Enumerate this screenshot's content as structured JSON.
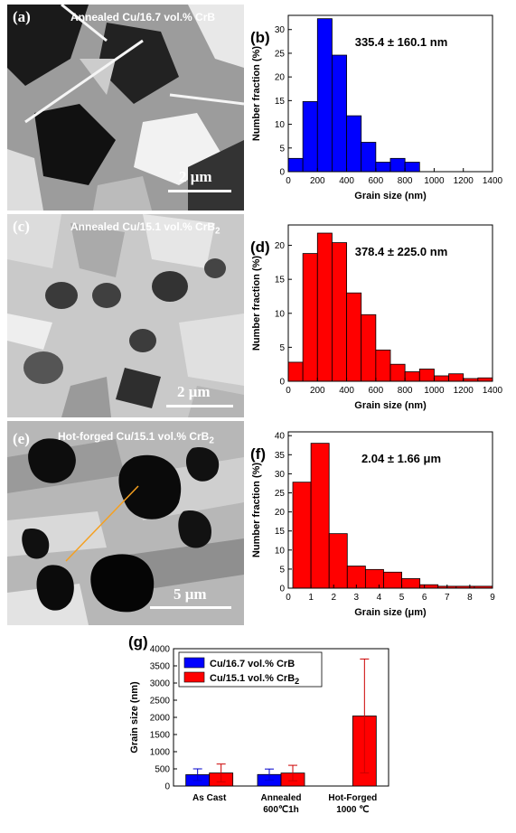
{
  "micrographs": [
    {
      "letter": "(a)",
      "title": "Annealed Cu/16.7 vol.% CrB",
      "title_sub": "",
      "scale": "2 μm"
    },
    {
      "letter": "(c)",
      "title": "Annealed Cu/15.1 vol.% CrB",
      "title_sub": "2",
      "scale": "2 μm"
    },
    {
      "letter": "(e)",
      "title": "Hot-forged Cu/15.1 vol.% CrB",
      "title_sub": "2",
      "scale": "5 μm"
    }
  ],
  "colors": {
    "blue": "#0000ff",
    "red": "#ff0000"
  },
  "chart_data": [
    {
      "id": "b",
      "letter": "(b)",
      "type": "bar",
      "annotation": "335.4 ± 160.1 nm",
      "xlabel": "Grain size (nm)",
      "ylabel": "Number fraction (%)",
      "xlim": [
        0,
        1400
      ],
      "ylim": [
        0,
        33
      ],
      "xticks": [
        0,
        200,
        400,
        600,
        800,
        1000,
        1200,
        1400
      ],
      "yticks": [
        0,
        5,
        10,
        15,
        20,
        25,
        30
      ],
      "bin_width": 100,
      "bin_starts": [
        0,
        100,
        200,
        300,
        400,
        500,
        600,
        700,
        800
      ],
      "values": [
        2.8,
        14.8,
        32.3,
        24.6,
        11.8,
        6.2,
        2.0,
        2.8,
        2.0
      ],
      "color": "#0000ff"
    },
    {
      "id": "d",
      "letter": "(d)",
      "type": "bar",
      "annotation": "378.4 ± 225.0 nm",
      "xlabel": "Grain size (nm)",
      "ylabel": "Number fraction (%)",
      "xlim": [
        0,
        1400
      ],
      "ylim": [
        0,
        23
      ],
      "xticks": [
        0,
        200,
        400,
        600,
        800,
        1000,
        1200,
        1400
      ],
      "yticks": [
        0,
        5,
        10,
        15,
        20
      ],
      "bin_width": 100,
      "bin_starts": [
        0,
        100,
        200,
        300,
        400,
        500,
        600,
        700,
        800,
        900,
        1000,
        1100,
        1200,
        1300
      ],
      "values": [
        2.8,
        18.8,
        21.8,
        20.4,
        13.0,
        9.8,
        4.6,
        2.5,
        1.4,
        1.8,
        0.8,
        1.1,
        0.4,
        0.5
      ],
      "color": "#ff0000"
    },
    {
      "id": "f",
      "letter": "(f)",
      "type": "bar",
      "annotation": "2.04 ± 1.66 μm",
      "xlabel": "Grain size (μm)",
      "ylabel": "Number fraction (%)",
      "xlim": [
        0,
        9
      ],
      "ylim": [
        0,
        41
      ],
      "xticks": [
        0,
        1,
        2,
        3,
        4,
        5,
        6,
        7,
        8,
        9
      ],
      "yticks": [
        0,
        5,
        10,
        15,
        20,
        25,
        30,
        35,
        40
      ],
      "bin_width": 0.8,
      "bin_starts": [
        0.2,
        1.0,
        1.8,
        2.6,
        3.4,
        4.2,
        5.0,
        5.8,
        6.6,
        7.4,
        8.2
      ],
      "values": [
        27.8,
        38.0,
        14.3,
        5.8,
        4.9,
        4.2,
        2.5,
        0.9,
        0.5,
        0.5,
        0.5
      ],
      "color": "#ff0000"
    },
    {
      "id": "g",
      "letter": "(g)",
      "type": "bar",
      "xlabel": "",
      "ylabel": "Grain size (nm)",
      "ylim": [
        0,
        4000
      ],
      "yticks": [
        0,
        500,
        1000,
        1500,
        2000,
        2500,
        3000,
        3500,
        4000
      ],
      "categories": [
        {
          "line1": "As Cast",
          "line2": ""
        },
        {
          "line1": "Annealed",
          "line2": "600℃1h"
        },
        {
          "line1": "Hot-Forged",
          "line2": "1000 ℃"
        }
      ],
      "legend": [
        {
          "name": "Cu/16.7 vol.% CrB",
          "sub": "",
          "color": "#0000ff"
        },
        {
          "name": "Cu/15.1 vol.% CrB",
          "sub": "2",
          "color": "#ff0000"
        }
      ],
      "series": [
        {
          "name": "Cu/16.7 vol.% CrB",
          "color": "#0000ff",
          "values": [
            330,
            335,
            null
          ],
          "errors": [
            170,
            160,
            null
          ]
        },
        {
          "name": "Cu/15.1 vol.% CrB2",
          "color": "#ff0000",
          "values": [
            380,
            378,
            2040
          ],
          "errors": [
            260,
            225,
            1660
          ]
        }
      ]
    }
  ]
}
